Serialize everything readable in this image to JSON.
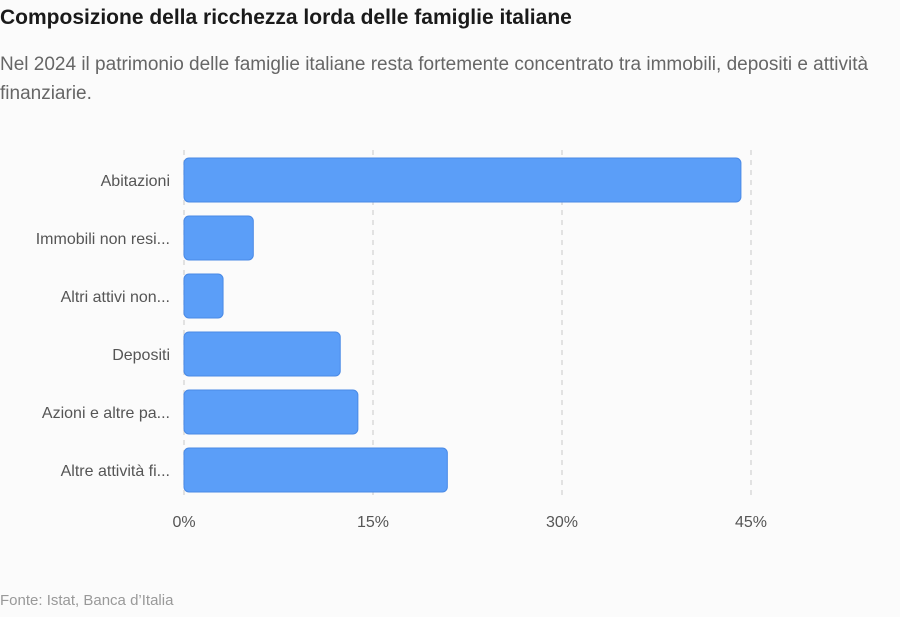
{
  "title": "Composizione della ricchezza lorda delle famiglie italiane",
  "subtitle": "Nel 2024 il patrimonio delle famiglie italiane resta fortemente concentrato tra immobili, depositi e attività finanziarie.",
  "source": "Fonte: Istat, Banca d’Italia",
  "colors": {
    "bar": "#5b9ef8",
    "bar_stroke": "#4a8ae6",
    "grid": "#d9d9d9"
  },
  "chart_data": {
    "type": "bar",
    "orientation": "horizontal",
    "categories": [
      "Abitazioni",
      "Immobili non resi...",
      "Altri attivi non...",
      "Depositi",
      "Azioni e altre pa...",
      "Altre attività fi..."
    ],
    "values": [
      44.2,
      5.5,
      3.1,
      12.4,
      13.8,
      20.9
    ],
    "unit": "%",
    "xlim": [
      0,
      45
    ],
    "xticks": [
      0,
      15,
      30,
      45
    ],
    "xtick_labels": [
      "0%",
      "15%",
      "30%",
      "45%"
    ],
    "grid": true,
    "legend": "none"
  }
}
